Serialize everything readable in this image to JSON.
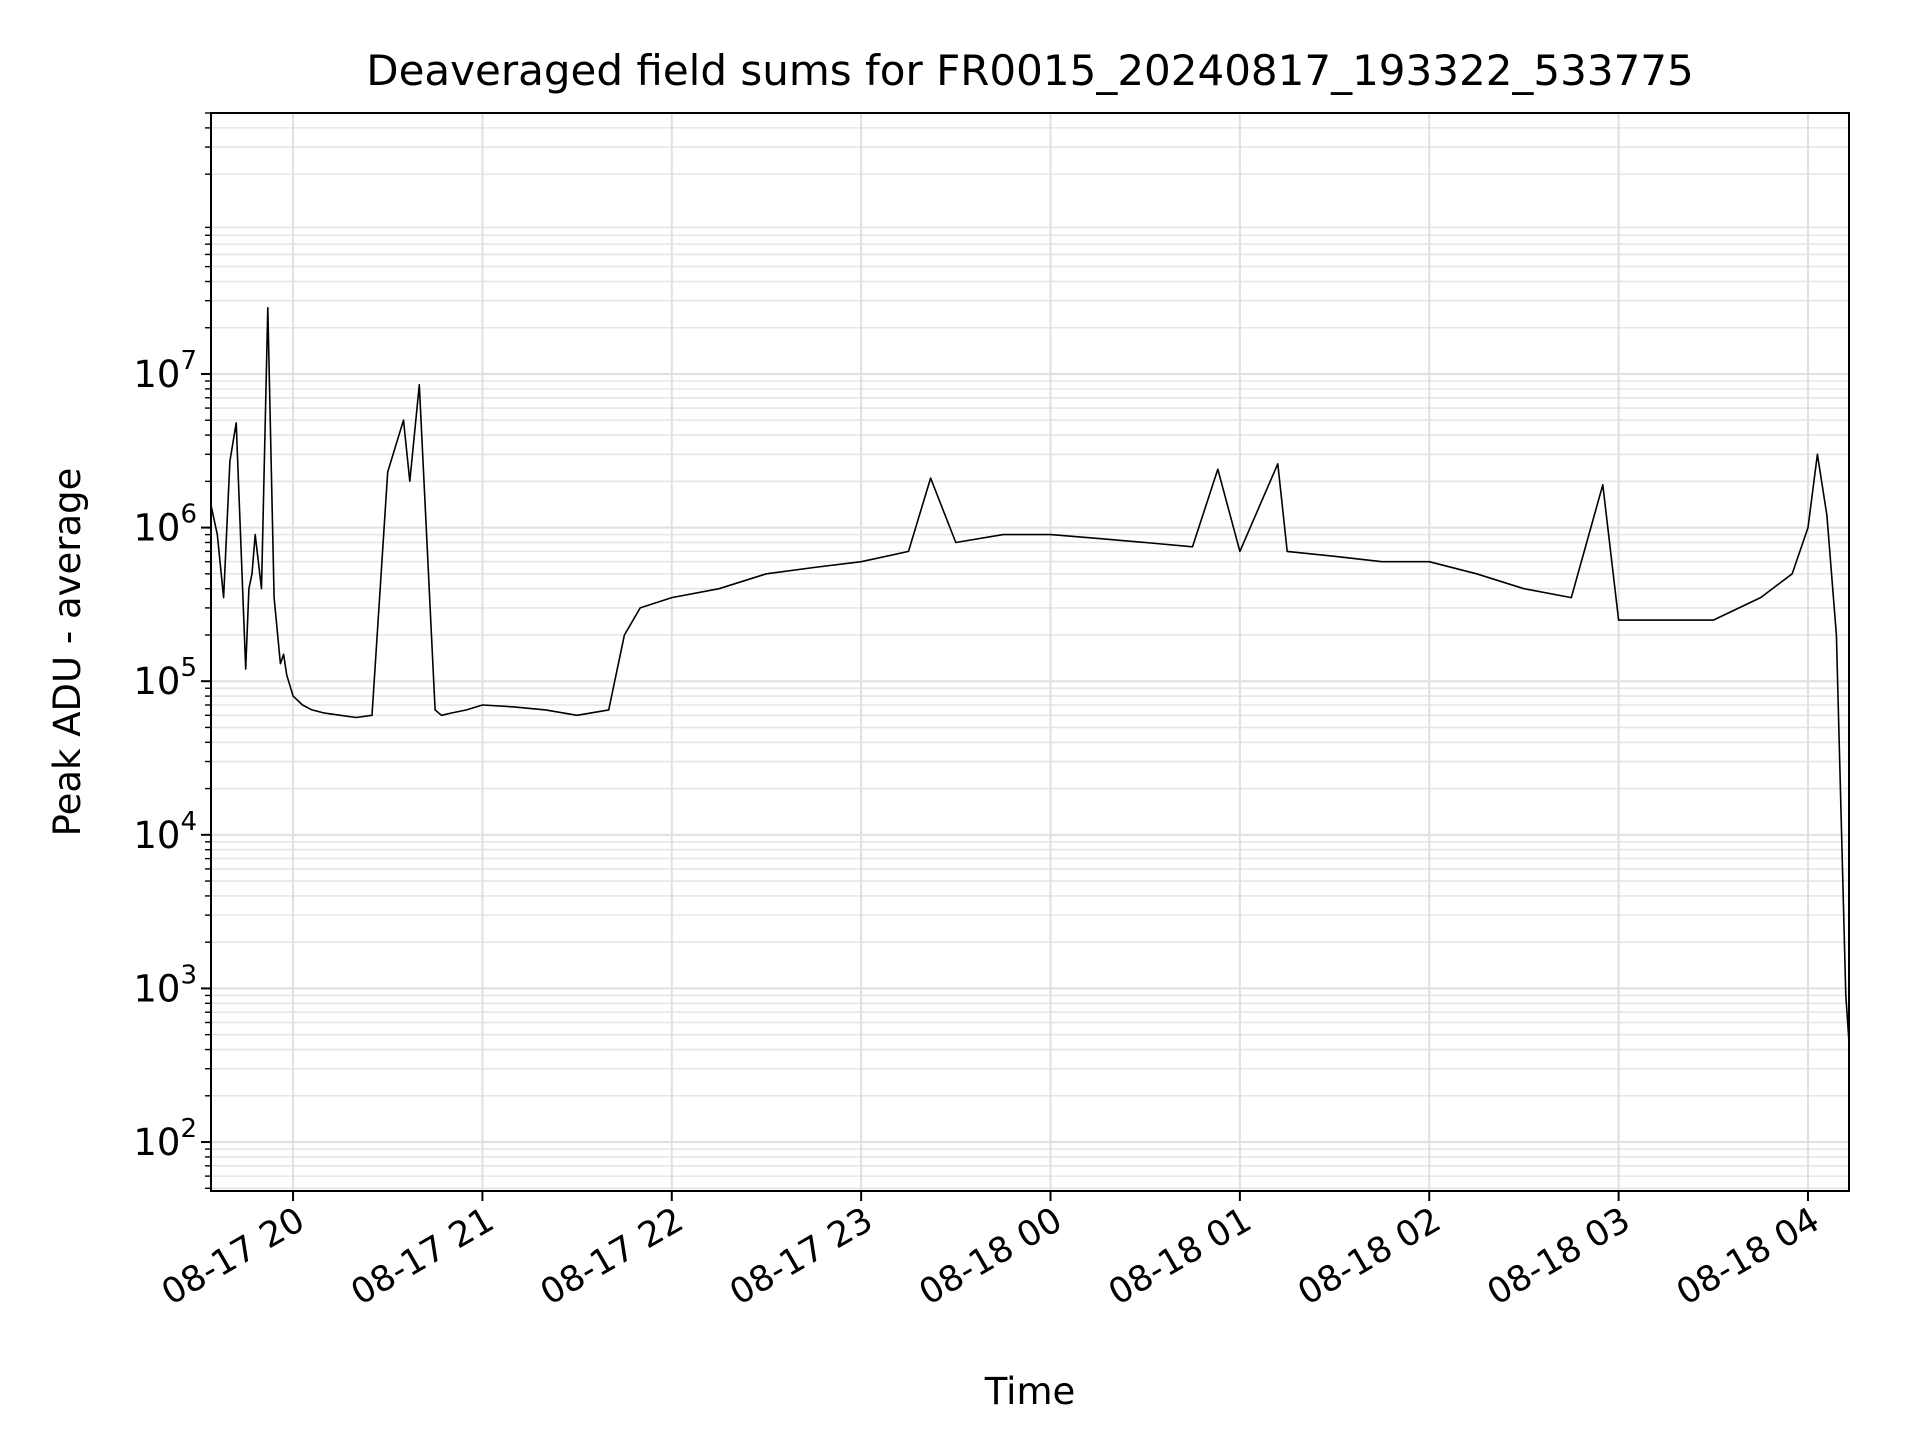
{
  "chart_data": {
    "type": "line",
    "title": "Deaveraged field sums for FR0015_20240817_193322_533775",
    "xlabel": "Time",
    "ylabel": "Peak ADU - average",
    "y_scale": "log",
    "ylim": [
      48,
      500000000
    ],
    "xlim": [
      "2024-08-17 19:34",
      "2024-08-18 04:13"
    ],
    "grid": true,
    "grid_minor": true,
    "x_tick_values": [
      "2024-08-17 20:00",
      "2024-08-17 21:00",
      "2024-08-17 22:00",
      "2024-08-17 23:00",
      "2024-08-18 00:00",
      "2024-08-18 01:00",
      "2024-08-18 02:00",
      "2024-08-18 03:00",
      "2024-08-18 04:00"
    ],
    "x_tick_labels": [
      "08-17 20",
      "08-17 21",
      "08-17 22",
      "08-17 23",
      "08-18 00",
      "08-18 01",
      "08-18 02",
      "08-18 03",
      "08-18 04"
    ],
    "y_ticks": [
      {
        "value": 100,
        "base": "10",
        "exp": "2"
      },
      {
        "value": 1000,
        "base": "10",
        "exp": "3"
      },
      {
        "value": 10000,
        "base": "10",
        "exp": "4"
      },
      {
        "value": 100000,
        "base": "10",
        "exp": "5"
      },
      {
        "value": 1000000,
        "base": "10",
        "exp": "6"
      },
      {
        "value": 10000000,
        "base": "10",
        "exp": "7"
      }
    ],
    "series": [
      {
        "color": "#000000",
        "x": [
          "2024-08-17 19:34",
          "2024-08-17 19:36",
          "2024-08-17 19:38",
          "2024-08-17 19:40",
          "2024-08-17 19:42",
          "2024-08-17 19:45",
          "2024-08-17 19:46",
          "2024-08-17 19:47",
          "2024-08-17 19:48",
          "2024-08-17 19:50",
          "2024-08-17 19:52",
          "2024-08-17 19:54",
          "2024-08-17 19:56",
          "2024-08-17 19:57",
          "2024-08-17 19:58",
          "2024-08-17 20:00",
          "2024-08-17 20:03",
          "2024-08-17 20:06",
          "2024-08-17 20:10",
          "2024-08-17 20:15",
          "2024-08-17 20:20",
          "2024-08-17 20:25",
          "2024-08-17 20:30",
          "2024-08-17 20:35",
          "2024-08-17 20:37",
          "2024-08-17 20:40",
          "2024-08-17 20:45",
          "2024-08-17 20:47",
          "2024-08-17 20:50",
          "2024-08-17 20:55",
          "2024-08-17 21:00",
          "2024-08-17 21:10",
          "2024-08-17 21:20",
          "2024-08-17 21:30",
          "2024-08-17 21:40",
          "2024-08-17 21:45",
          "2024-08-17 21:50",
          "2024-08-17 22:00",
          "2024-08-17 22:15",
          "2024-08-17 22:30",
          "2024-08-17 22:45",
          "2024-08-17 23:00",
          "2024-08-17 23:15",
          "2024-08-17 23:22",
          "2024-08-17 23:30",
          "2024-08-17 23:45",
          "2024-08-18 00:00",
          "2024-08-18 00:15",
          "2024-08-18 00:30",
          "2024-08-18 00:45",
          "2024-08-18 00:53",
          "2024-08-18 01:00",
          "2024-08-18 01:12",
          "2024-08-18 01:15",
          "2024-08-18 01:30",
          "2024-08-18 01:45",
          "2024-08-18 02:00",
          "2024-08-18 02:15",
          "2024-08-18 02:30",
          "2024-08-18 02:45",
          "2024-08-18 02:55",
          "2024-08-18 03:00",
          "2024-08-18 03:15",
          "2024-08-18 03:30",
          "2024-08-18 03:45",
          "2024-08-18 03:55",
          "2024-08-18 04:00",
          "2024-08-18 04:03",
          "2024-08-18 04:06",
          "2024-08-18 04:09",
          "2024-08-18 04:12",
          "2024-08-18 04:13"
        ],
        "y": [
          1400000,
          900000,
          350000,
          2700000,
          4800000,
          120000,
          400000,
          500000,
          900000,
          400000,
          27000000,
          350000,
          130000,
          150000,
          110000,
          80000,
          70000,
          65000,
          62000,
          60000,
          58000,
          60000,
          2300000,
          5000000,
          2000000,
          8500000,
          65000,
          60000,
          62000,
          65000,
          70000,
          68000,
          65000,
          60000,
          65000,
          200000,
          300000,
          350000,
          400000,
          500000,
          550000,
          600000,
          700000,
          2100000,
          800000,
          900000,
          900000,
          850000,
          800000,
          750000,
          2400000,
          700000,
          2600000,
          700000,
          650000,
          600000,
          600000,
          500000,
          400000,
          350000,
          1900000,
          250000,
          250000,
          250000,
          350000,
          500000,
          1000000,
          3000000,
          1200000,
          200000,
          900,
          450
        ]
      }
    ]
  }
}
